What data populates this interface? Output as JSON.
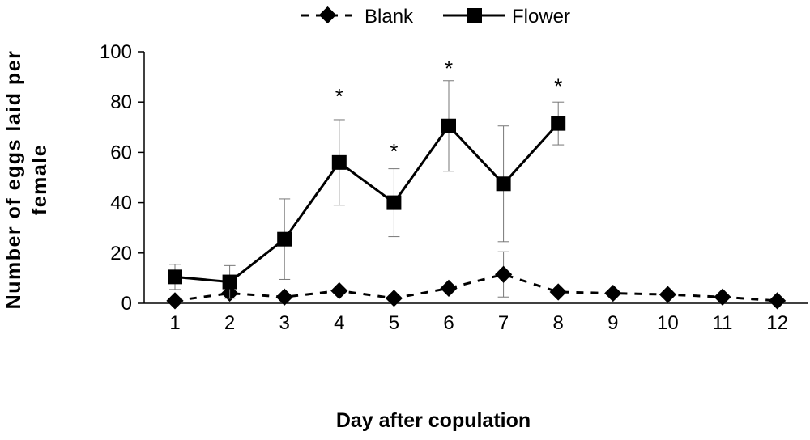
{
  "chart_data": {
    "type": "line",
    "title": "",
    "xlabel": "Day after copulation",
    "ylabel_lines": [
      "Number of eggs laid per",
      "female"
    ],
    "x": [
      1,
      2,
      3,
      4,
      5,
      6,
      7,
      8,
      9,
      10,
      11,
      12
    ],
    "x_tick_labels": [
      "1",
      "2",
      "3",
      "4",
      "5",
      "6",
      "7",
      "8",
      "9",
      "10",
      "11",
      "12"
    ],
    "ylim": [
      0,
      100
    ],
    "y_ticks": [
      0,
      20,
      40,
      60,
      80,
      100
    ],
    "y_tick_labels": [
      "0",
      "20",
      "40",
      "60",
      "80",
      "100"
    ],
    "grid": false,
    "legend_position": "top-center",
    "series": [
      {
        "name": "Blank",
        "marker": "diamond",
        "line_style": "dashed",
        "color": "#000000",
        "values": [
          1,
          4,
          2.5,
          5,
          2,
          6,
          11.5,
          4.5,
          4,
          3.5,
          2.5,
          1
        ],
        "error": [
          0,
          0,
          0,
          0,
          0,
          0,
          9,
          0,
          0,
          0,
          0,
          0
        ]
      },
      {
        "name": "Flower",
        "marker": "square",
        "line_style": "solid",
        "color": "#000000",
        "values": [
          10.5,
          8.5,
          25.5,
          56,
          40,
          70.5,
          47.5,
          71.5,
          null,
          null,
          null,
          null
        ],
        "error": [
          5,
          6.5,
          16,
          17,
          13.5,
          18,
          23,
          8.5,
          null,
          null,
          null,
          null
        ]
      }
    ],
    "annotations": [
      {
        "text": "*",
        "x": 4,
        "y": 84
      },
      {
        "text": "*",
        "x": 5,
        "y": 62
      },
      {
        "text": "*",
        "x": 6,
        "y": 95
      },
      {
        "text": "*",
        "x": 8,
        "y": 88
      }
    ]
  }
}
